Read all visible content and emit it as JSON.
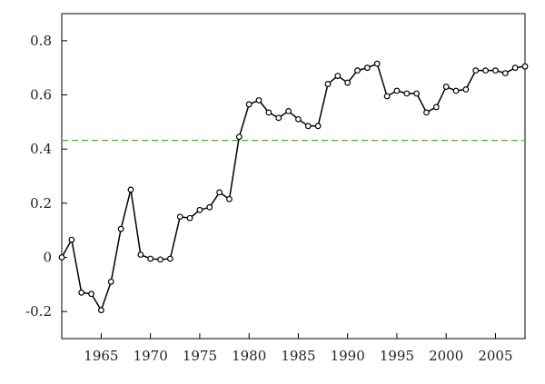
{
  "chart_data": {
    "type": "line",
    "title": "",
    "xlabel": "",
    "ylabel": "",
    "xlim": [
      1961,
      2008
    ],
    "ylim": [
      -0.3,
      0.9
    ],
    "grid": false,
    "legend": "none",
    "x_ticks": [
      1965,
      1970,
      1975,
      1980,
      1985,
      1990,
      1995,
      2000,
      2005
    ],
    "y_ticks": [
      -0.2,
      0,
      0.2,
      0.4,
      0.6,
      0.8
    ],
    "x_tick_labels": [
      "1965",
      "1970",
      "1975",
      "1980",
      "1985",
      "1990",
      "1995",
      "2000",
      "2005"
    ],
    "y_tick_labels": [
      "-0.2",
      "0",
      "0.2",
      "0.4",
      "0.6",
      "0.8"
    ],
    "reference_line": {
      "y": 0.432,
      "style": "dashed",
      "color": "#5aa83c"
    },
    "series": [
      {
        "color": "#000000",
        "marker": "open-circle",
        "x": [
          1961,
          1962,
          1963,
          1964,
          1965,
          1966,
          1967,
          1968,
          1969,
          1970,
          1971,
          1972,
          1973,
          1974,
          1975,
          1976,
          1977,
          1978,
          1979,
          1980,
          1981,
          1982,
          1983,
          1984,
          1985,
          1986,
          1987,
          1988,
          1989,
          1990,
          1991,
          1992,
          1993,
          1994,
          1995,
          1996,
          1997,
          1998,
          1999,
          2000,
          2001,
          2002,
          2003,
          2004,
          2005,
          2006,
          2007,
          2008
        ],
        "y": [
          0.0,
          0.065,
          -0.13,
          -0.135,
          -0.195,
          -0.09,
          0.105,
          0.25,
          0.01,
          -0.005,
          -0.008,
          -0.005,
          0.15,
          0.145,
          0.175,
          0.185,
          0.24,
          0.215,
          0.445,
          0.565,
          0.58,
          0.535,
          0.515,
          0.54,
          0.51,
          0.485,
          0.485,
          0.64,
          0.67,
          0.645,
          0.69,
          0.7,
          0.715,
          0.595,
          0.615,
          0.605,
          0.605,
          0.535,
          0.555,
          0.63,
          0.615,
          0.62,
          0.69,
          0.69,
          0.69,
          0.68,
          0.7,
          0.705
        ]
      }
    ]
  }
}
